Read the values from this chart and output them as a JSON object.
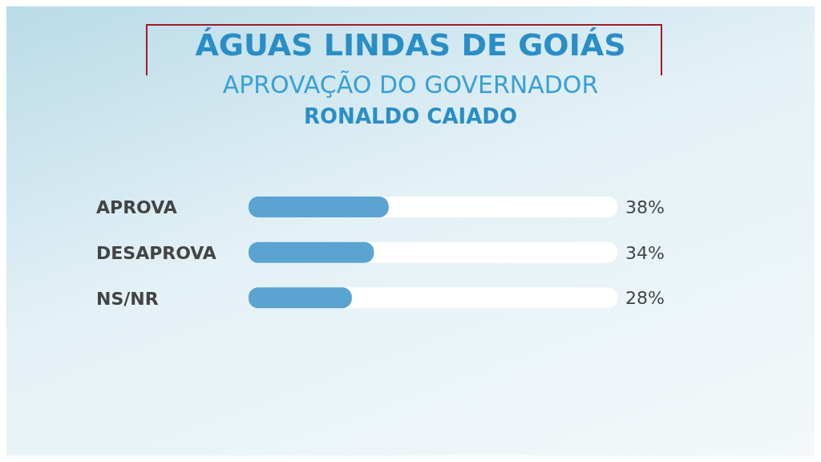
{
  "chart_data": {
    "type": "bar",
    "orientation": "horizontal",
    "title": "ÁGUAS LINDAS DE GOIÁS",
    "subtitle": "APROVAÇÃO DO GOVERNADOR\nRONALDO CAIADO",
    "categories": [
      "APROVA",
      "DESAPROVA",
      "NS/NR"
    ],
    "values": [
      38,
      34,
      28
    ],
    "value_labels": [
      "38%",
      "34%",
      "28%"
    ],
    "color": "#5ba3d0",
    "xlim": [
      0,
      100
    ],
    "tick_labels": "y"
  }
}
